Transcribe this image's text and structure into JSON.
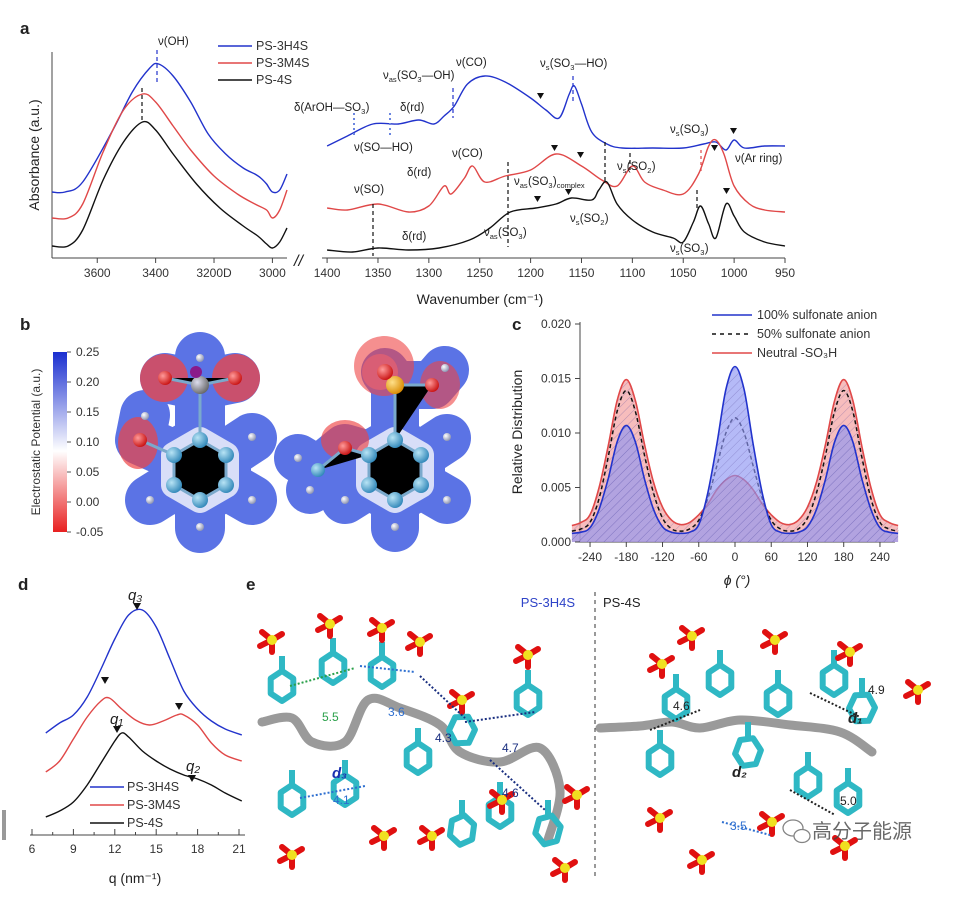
{
  "panel_labels": {
    "a": "a",
    "b": "b",
    "c": "c",
    "d": "d",
    "e": "e"
  },
  "colors": {
    "PS-3H4S": "#2233cc",
    "PS-3M4S": "#e04848",
    "PS-4S": "#111111",
    "blue_fill": "#7b86f0",
    "red_fill": "#f08a8a"
  },
  "chart_data": [
    {
      "id": "a-left",
      "type": "line",
      "ylabel": "Absorbance (a.u.)",
      "xlim": [
        3755,
        2950
      ],
      "xticks": [
        3600,
        3400,
        3200,
        3000
      ],
      "tick_labels": [
        "3600",
        "3400",
        "3200D",
        "3000"
      ],
      "legend": [
        "PS-3H4S",
        "PS-3M4S",
        "PS-4S"
      ],
      "series": [
        {
          "name": "PS-3H4S",
          "color": "#2233cc",
          "x": [
            3755,
            3710,
            3650,
            3550,
            3480,
            3420,
            3390,
            3340,
            3280,
            3220,
            3160,
            3100,
            3060,
            3040,
            3020,
            3000,
            2975,
            2950
          ],
          "y": [
            0.33,
            0.33,
            0.38,
            0.63,
            0.83,
            0.95,
            0.97,
            0.91,
            0.78,
            0.62,
            0.52,
            0.45,
            0.42,
            0.4,
            0.37,
            0.33,
            0.34,
            0.42
          ]
        },
        {
          "name": "PS-3M4S",
          "color": "#e04848",
          "x": [
            3755,
            3700,
            3650,
            3580,
            3510,
            3445,
            3400,
            3340,
            3280,
            3200,
            3120,
            3060,
            3020,
            3000,
            2975,
            2950
          ],
          "y": [
            0.2,
            0.2,
            0.27,
            0.53,
            0.74,
            0.82,
            0.78,
            0.66,
            0.54,
            0.41,
            0.32,
            0.27,
            0.24,
            0.2,
            0.24,
            0.34
          ]
        },
        {
          "name": "PS-4S",
          "color": "#111111",
          "x": [
            3755,
            3700,
            3650,
            3580,
            3510,
            3445,
            3400,
            3340,
            3260,
            3180,
            3100,
            3050,
            3020,
            3000,
            2975,
            2950
          ],
          "y": [
            0.06,
            0.06,
            0.14,
            0.39,
            0.58,
            0.68,
            0.64,
            0.52,
            0.37,
            0.25,
            0.16,
            0.11,
            0.07,
            0.05,
            0.08,
            0.15
          ]
        }
      ],
      "annotations": [
        {
          "text": "ν(OH)"
        }
      ]
    },
    {
      "id": "a-right",
      "type": "line",
      "xlabel": "Wavenumber (cm⁻¹)",
      "xlim": [
        1405,
        950
      ],
      "xticks": [
        1400,
        1350,
        1300,
        1250,
        1200,
        1150,
        1100,
        1050,
        1000,
        950
      ],
      "tick_labels": [
        "1400",
        "1350",
        "1300",
        "1250",
        "1200",
        "1150",
        "1100",
        "1050",
        "1000",
        "950"
      ],
      "axis_break": "//",
      "series": [
        {
          "name": "PS-3H4S",
          "color": "#2233cc",
          "x": [
            1400,
            1380,
            1355,
            1330,
            1310,
            1295,
            1285,
            1275,
            1262,
            1245,
            1225,
            1200,
            1185,
            1172,
            1162,
            1157,
            1150,
            1140,
            1125,
            1110,
            1080,
            1050,
            1030,
            1018,
            1008,
            1000,
            990,
            970,
            950
          ],
          "y": [
            0.56,
            0.61,
            0.67,
            0.67,
            0.69,
            0.67,
            0.71,
            0.76,
            0.87,
            0.91,
            0.88,
            0.8,
            0.74,
            0.7,
            0.82,
            0.86,
            0.77,
            0.63,
            0.57,
            0.55,
            0.55,
            0.55,
            0.57,
            0.58,
            0.54,
            0.59,
            0.55,
            0.56,
            0.56
          ]
        },
        {
          "name": "PS-3M4S",
          "color": "#e04848",
          "x": [
            1400,
            1380,
            1350,
            1320,
            1300,
            1285,
            1278,
            1265,
            1257,
            1245,
            1225,
            1200,
            1175,
            1150,
            1130,
            1115,
            1100,
            1088,
            1070,
            1050,
            1035,
            1025,
            1018,
            1010,
            1000,
            985,
            970,
            950
          ],
          "y": [
            0.25,
            0.24,
            0.27,
            0.23,
            0.26,
            0.36,
            0.32,
            0.4,
            0.46,
            0.38,
            0.41,
            0.44,
            0.52,
            0.46,
            0.39,
            0.36,
            0.46,
            0.38,
            0.34,
            0.32,
            0.42,
            0.56,
            0.59,
            0.52,
            0.36,
            0.27,
            0.24,
            0.23
          ]
        },
        {
          "name": "PS-4S",
          "color": "#111111",
          "x": [
            1400,
            1375,
            1350,
            1320,
            1290,
            1260,
            1240,
            1220,
            1195,
            1175,
            1160,
            1140,
            1133,
            1125,
            1115,
            1100,
            1080,
            1060,
            1050,
            1040,
            1033,
            1025,
            1018,
            1008,
            1000,
            990,
            970,
            950
          ],
          "y": [
            0.04,
            0.03,
            0.05,
            0.04,
            0.05,
            0.09,
            0.15,
            0.23,
            0.25,
            0.27,
            0.3,
            0.29,
            0.34,
            0.38,
            0.27,
            0.19,
            0.13,
            0.1,
            0.08,
            0.18,
            0.26,
            0.17,
            0.1,
            0.27,
            0.21,
            0.13,
            0.08,
            0.06
          ]
        }
      ],
      "annotations": [
        {
          "parts": [
            [
              "ν",
              ""
            ],
            [
              "as",
              "sub"
            ],
            [
              "(SO",
              ""
            ],
            [
              "3",
              "sub"
            ],
            [
              "—OH)",
              ""
            ]
          ]
        },
        {
          "parts": [
            [
              "ν(CO)",
              ""
            ]
          ]
        },
        {
          "parts": [
            [
              "ν",
              ""
            ],
            [
              "s",
              "sub"
            ],
            [
              "(SO",
              ""
            ],
            [
              "3",
              "sub"
            ],
            [
              "—HO)",
              ""
            ]
          ]
        },
        {
          "parts": [
            [
              "δ(ArOH—SO",
              ""
            ],
            [
              "3",
              "sub"
            ],
            [
              ")",
              ""
            ]
          ]
        },
        {
          "parts": [
            [
              "δ(rd)",
              ""
            ]
          ]
        },
        {
          "parts": [
            [
              "ν(SO—HO)",
              ""
            ]
          ]
        },
        {
          "parts": [
            [
              "ν",
              ""
            ],
            [
              "s",
              "sub"
            ],
            [
              "(SO",
              ""
            ],
            [
              "3",
              "sub"
            ],
            [
              ")",
              ""
            ]
          ]
        },
        {
          "parts": [
            [
              "ν(Ar ring)",
              ""
            ]
          ]
        },
        {
          "parts": [
            [
              "δ(rd)",
              ""
            ]
          ]
        },
        {
          "parts": [
            [
              "ν(CO)",
              ""
            ]
          ]
        },
        {
          "parts": [
            [
              "ν(SO)",
              ""
            ]
          ]
        },
        {
          "parts": [
            [
              "ν",
              ""
            ],
            [
              "as",
              "sub"
            ],
            [
              "(SO",
              ""
            ],
            [
              "3",
              "sub"
            ],
            [
              ")",
              ""
            ],
            [
              "complex",
              "sub"
            ]
          ]
        },
        {
          "parts": [
            [
              "ν",
              ""
            ],
            [
              "s",
              "sub"
            ],
            [
              "(SO",
              ""
            ],
            [
              "2",
              "sub"
            ],
            [
              ")",
              ""
            ]
          ]
        },
        {
          "parts": [
            [
              "δ(rd)",
              ""
            ]
          ]
        },
        {
          "parts": [
            [
              "ν",
              ""
            ],
            [
              "as",
              "sub"
            ],
            [
              "(SO",
              ""
            ],
            [
              "3",
              "sub"
            ],
            [
              ")",
              ""
            ]
          ]
        },
        {
          "parts": [
            [
              "ν",
              ""
            ],
            [
              "s",
              "sub"
            ],
            [
              "(SO",
              ""
            ],
            [
              "2",
              "sub"
            ],
            [
              ")",
              ""
            ]
          ]
        },
        {
          "parts": [
            [
              "ν",
              ""
            ],
            [
              "s",
              "sub"
            ],
            [
              "(SO",
              ""
            ],
            [
              "3",
              "sub"
            ],
            [
              ")",
              ""
            ]
          ]
        }
      ]
    },
    {
      "id": "c",
      "type": "area",
      "ylabel": "Relative Distribution",
      "xlabel": "ϕ (°)",
      "xlim": [
        -270,
        270
      ],
      "ylim": [
        0,
        0.02
      ],
      "xticks": [
        -240,
        -180,
        -120,
        -60,
        0,
        60,
        120,
        180,
        240
      ],
      "yticks": [
        "0.000",
        "0.005",
        "0.010",
        "0.015",
        "0.020"
      ],
      "legend_position": "top-right",
      "x": [
        -270,
        -255,
        -240,
        -225,
        -210,
        -195,
        -180,
        -165,
        -150,
        -135,
        -120,
        -105,
        -90,
        -75,
        -60,
        -45,
        -30,
        -15,
        0,
        15,
        30,
        45,
        60,
        75,
        90,
        105,
        120,
        135,
        150,
        165,
        180,
        195,
        210,
        225,
        240,
        255,
        270
      ],
      "series": [
        {
          "name": "Neutral -SO₃H",
          "color": "#e04848",
          "style": "solid",
          "y": [
            0.0015,
            0.0018,
            0.0025,
            0.005,
            0.0088,
            0.013,
            0.0149,
            0.013,
            0.009,
            0.0055,
            0.0032,
            0.002,
            0.0016,
            0.0018,
            0.0025,
            0.0035,
            0.0048,
            0.0057,
            0.0061,
            0.0057,
            0.0048,
            0.0035,
            0.0025,
            0.0018,
            0.0016,
            0.002,
            0.0032,
            0.0055,
            0.009,
            0.013,
            0.0149,
            0.013,
            0.0088,
            0.005,
            0.0025,
            0.0018,
            0.0015
          ]
        },
        {
          "name": "50% sulfonate anion",
          "color": "#111111",
          "style": "dashed",
          "y": [
            0.001,
            0.0012,
            0.0018,
            0.004,
            0.0078,
            0.012,
            0.0139,
            0.012,
            0.008,
            0.0045,
            0.0022,
            0.0012,
            0.001,
            0.0012,
            0.002,
            0.004,
            0.007,
            0.01,
            0.0114,
            0.01,
            0.007,
            0.004,
            0.002,
            0.0012,
            0.001,
            0.0012,
            0.0022,
            0.0045,
            0.008,
            0.012,
            0.0139,
            0.012,
            0.0078,
            0.004,
            0.0018,
            0.0012,
            0.001
          ]
        },
        {
          "name": "100% sulfonate anion",
          "color": "#2233cc",
          "style": "solid",
          "y": [
            0.0008,
            0.0009,
            0.0013,
            0.003,
            0.0058,
            0.0092,
            0.0107,
            0.0092,
            0.0058,
            0.003,
            0.0014,
            0.0009,
            0.0008,
            0.0009,
            0.0016,
            0.0045,
            0.009,
            0.014,
            0.0161,
            0.014,
            0.009,
            0.0045,
            0.0016,
            0.0009,
            0.0008,
            0.0009,
            0.0014,
            0.003,
            0.0058,
            0.0092,
            0.0107,
            0.0092,
            0.0058,
            0.003,
            0.0013,
            0.0009,
            0.0008
          ]
        }
      ],
      "legend": [
        "100% sulfonate anion",
        "50% sulfonate anion",
        "Neutral -SO₃H"
      ]
    },
    {
      "id": "d",
      "type": "line",
      "xlabel": "q (nm⁻¹)",
      "xlim": [
        5.9,
        21.8
      ],
      "xticks": [
        6,
        9,
        12,
        15,
        18,
        21
      ],
      "series": [
        {
          "name": "PS-3H4S",
          "color": "#2233cc",
          "x": [
            7,
            8,
            9,
            10,
            11,
            12,
            13,
            14,
            15,
            16,
            17,
            18,
            19,
            20,
            21.2
          ],
          "y": [
            10.2,
            11.2,
            12.0,
            13.8,
            16.6,
            19.6,
            22.0,
            22.5,
            20.8,
            17.6,
            14.4,
            12.6,
            11.4,
            10.6,
            10.0
          ]
        },
        {
          "name": "PS-3M4S",
          "color": "#e04848",
          "x": [
            7,
            8,
            9,
            10,
            11,
            11.6,
            12.5,
            13.5,
            14.5,
            15.5,
            16.5,
            17,
            18,
            19,
            20,
            21.2
          ],
          "y": [
            6.3,
            7.4,
            9.6,
            11.8,
            13.4,
            13.7,
            12.6,
            11.5,
            11.0,
            11.4,
            12.0,
            12.0,
            11.0,
            9.2,
            8.0,
            7.4
          ]
        },
        {
          "name": "PS-4S",
          "color": "#111111",
          "x": [
            7,
            8,
            9,
            10,
            11,
            12,
            12.5,
            13,
            14,
            15,
            16,
            17,
            18,
            19,
            20,
            21.2
          ],
          "y": [
            1.8,
            2.4,
            3.3,
            5.0,
            7.2,
            9.4,
            10.2,
            9.8,
            8.4,
            7.4,
            6.6,
            6.0,
            5.6,
            5.0,
            4.2,
            3.4
          ]
        }
      ],
      "annotations": [
        "q₃",
        "q₁",
        "q₂"
      ],
      "legend": [
        "PS-3H4S",
        "PS-3M4S",
        "PS-4S"
      ]
    }
  ],
  "panel_b": {
    "colorbar_label": "Electrostatic Potential (a.u.)",
    "colorbar_ticks": [
      "0.25",
      "0.20",
      "0.15",
      "0.10",
      "0.05",
      "0.00",
      "-0.05"
    ],
    "colorbar_colors": [
      "#1a2fd0",
      "#ffffff",
      "#e82020"
    ]
  },
  "panel_e": {
    "title_left": "PS-3H4S",
    "title_right": "PS-4S",
    "left_distances": [
      "5.5",
      "3.6",
      "4.3",
      "4.7",
      "4.1",
      "4.6"
    ],
    "left_d": "d₃",
    "right_distances": [
      "4.6",
      "4.9",
      "5.0",
      "3.5"
    ],
    "right_d1": "d₁",
    "right_d2": "d₂"
  },
  "watermark": "高分子能源"
}
